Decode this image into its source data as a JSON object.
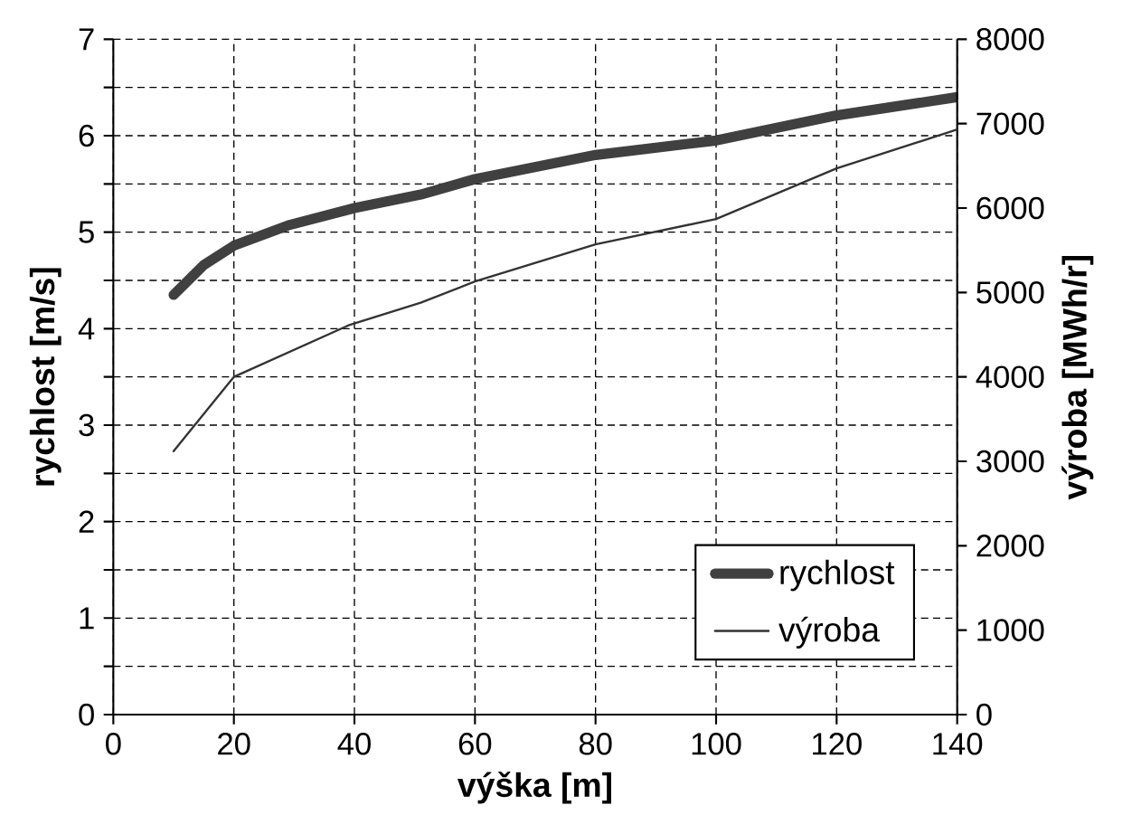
{
  "chart_data": {
    "type": "line",
    "xlabel": "výška [m]",
    "ylabel": "rychlost [m/s]",
    "y2label": "výroba [MWh/r]",
    "xlim": [
      0,
      140
    ],
    "xticks": [
      0,
      20,
      40,
      60,
      80,
      100,
      120,
      140
    ],
    "ylim": [
      0,
      7
    ],
    "yticks": [
      0,
      {
        "value": 0.5,
        "label": null
      },
      1,
      {
        "value": 1.5,
        "label": null
      },
      2,
      {
        "value": 2.5,
        "label": null
      },
      3,
      {
        "value": 3.5,
        "label": null
      },
      4,
      {
        "value": 4.5,
        "label": null
      },
      5,
      {
        "value": 5.5,
        "label": null
      },
      6,
      {
        "value": 6.5,
        "label": null
      },
      7
    ],
    "y2lim": [
      0,
      8000
    ],
    "y2ticks": [
      0,
      1000,
      2000,
      3000,
      4000,
      5000,
      6000,
      7000,
      8000
    ],
    "grid": true,
    "legend": "bottom right",
    "line_style": "solid",
    "series": [
      {
        "name": "rychlost",
        "color": "#404040",
        "x": [
          10,
          15,
          20,
          29,
          40,
          51,
          60,
          80,
          100,
          120,
          140
        ],
        "values": [
          4.35,
          4.66,
          4.86,
          5.07,
          5.25,
          5.39,
          5.55,
          5.8,
          5.95,
          6.21,
          6.4
        ]
      },
      {
        "name": "výroba",
        "color": "#333333",
        "axis": "y2",
        "x": [
          10,
          20,
          39,
          51,
          60,
          80,
          100,
          120,
          140
        ],
        "values": [
          3120,
          4000,
          4610,
          4880,
          5130,
          5570,
          5870,
          6470,
          6930
        ]
      }
    ]
  }
}
